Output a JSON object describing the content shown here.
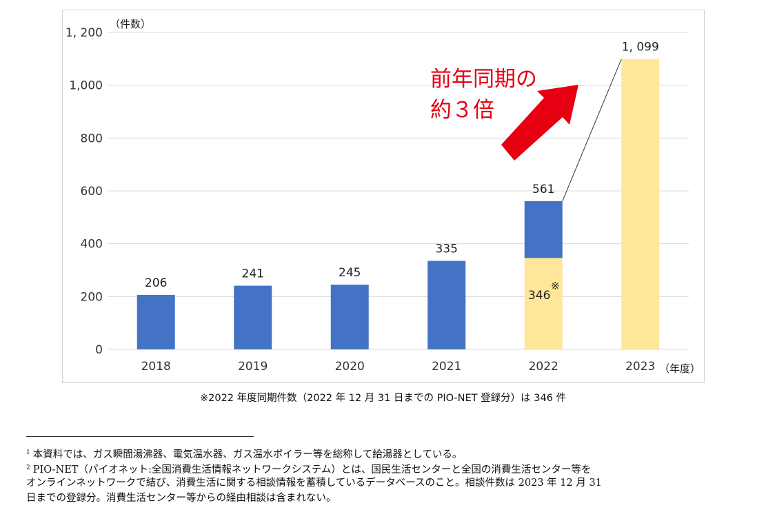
{
  "chart_data": {
    "type": "bar",
    "categories": [
      "2018",
      "2019",
      "2020",
      "2021",
      "2022",
      "2023"
    ],
    "series": [
      {
        "values": [
          206,
          241,
          245,
          335,
          561,
          null
        ]
      },
      {
        "values": [
          null,
          null,
          null,
          null,
          346,
          1099
        ]
      }
    ],
    "data_labels": [
      "206",
      "241",
      "245",
      "335",
      "561",
      "1, 099"
    ],
    "inner_labels": [
      {
        "category": "2022",
        "text": "346",
        "mark": "※"
      }
    ],
    "yticks": [
      0,
      200,
      400,
      600,
      800,
      1000,
      1200
    ],
    "ytick_labels": [
      "0",
      "200",
      "400",
      "600",
      "800",
      "1,000",
      "1, 200"
    ],
    "ylim": [
      0,
      1200
    ],
    "ylabel": "（件数）",
    "xlabel": "（年度）",
    "grid": true,
    "annotation": {
      "line1": "前年同期の",
      "line2": "約３倍"
    },
    "colors": {
      "blue": "#4472c4",
      "yellow": "#ffe699",
      "red": "#e60012",
      "grid": "#d9d9d9"
    }
  },
  "note": "※2022 年度同期件数（2022 年 12 月 31 日までの PIO-NET 登録分）は 346 件",
  "footnotes": [
    {
      "num": "1",
      "text": "本資料では、ガス瞬間湯沸器、電気温水器、ガス温水ボイラー等を総称して給湯器としている。"
    },
    {
      "num": "2",
      "text": "PIO-NET（パイオネット:全国消費生活情報ネットワークシステム）とは、国民生活センターと全国の消費生活センター等を"
    },
    {
      "num": "",
      "text": "オンラインネットワークで結び、消費生活に関する相談情報を蓄積しているデータベースのこと。相談件数は 2023 年 12 月 31"
    },
    {
      "num": "",
      "text": "日までの登録分。消費生活センター等からの経由相談は含まれない。"
    }
  ]
}
